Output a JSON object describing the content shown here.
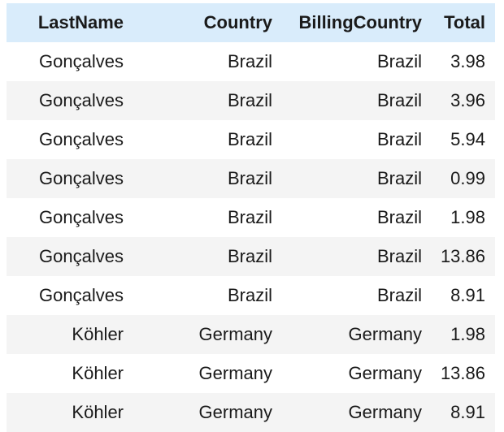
{
  "table": {
    "headers": [
      "LastName",
      "Country",
      "BillingCountry",
      "Total"
    ],
    "rows": [
      [
        "Gonçalves",
        "Brazil",
        "Brazil",
        "3.98"
      ],
      [
        "Gonçalves",
        "Brazil",
        "Brazil",
        "3.96"
      ],
      [
        "Gonçalves",
        "Brazil",
        "Brazil",
        "5.94"
      ],
      [
        "Gonçalves",
        "Brazil",
        "Brazil",
        "0.99"
      ],
      [
        "Gonçalves",
        "Brazil",
        "Brazil",
        "1.98"
      ],
      [
        "Gonçalves",
        "Brazil",
        "Brazil",
        "13.86"
      ],
      [
        "Gonçalves",
        "Brazil",
        "Brazil",
        "8.91"
      ],
      [
        "Köhler",
        "Germany",
        "Germany",
        "1.98"
      ],
      [
        "Köhler",
        "Germany",
        "Germany",
        "13.86"
      ],
      [
        "Köhler",
        "Germany",
        "Germany",
        "8.91"
      ]
    ]
  },
  "colors": {
    "header_bg": "#d9ecfb",
    "stripe_bg": "#f4f4f4",
    "row_bg": "#ffffff"
  }
}
